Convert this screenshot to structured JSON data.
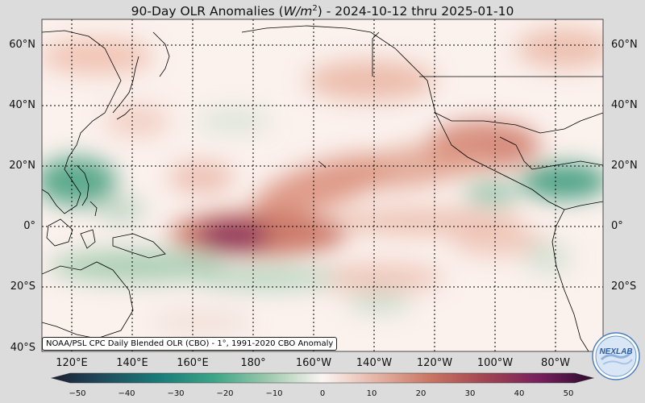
{
  "header": {
    "title_pre": "90-Day OLR Anomalies (",
    "title_unit": "W/m",
    "title_exp": "2",
    "title_post": ") - 2024-10-12 thru 2025-01-10"
  },
  "map": {
    "lat_labels": [
      "60°N",
      "40°N",
      "20°N",
      "0°",
      "20°S",
      "40°S"
    ],
    "lon_labels": [
      "120°E",
      "140°E",
      "160°E",
      "180°",
      "160°W",
      "140°W",
      "120°W",
      "100°W",
      "80°W"
    ],
    "attribution": "NOAA/PSL CPC Daily Blended OLR (CBO) - 1°, 1991-2020 CBO Anomaly",
    "colors": {
      "ocean_neutral": "#fbf1ed",
      "negative": "#2b8f72",
      "positive": "#b34a3a",
      "strong_positive": "#7a1f5c",
      "land_outline": "#000000",
      "grid": "#000000"
    }
  },
  "colorbar": {
    "min": -50,
    "max": 50,
    "tick_labels": [
      "−50",
      "−40",
      "−30",
      "−20",
      "−10",
      "0",
      "10",
      "20",
      "30",
      "40",
      "50"
    ],
    "stops": [
      "#1c1e33",
      "#1f4e5f",
      "#197c7a",
      "#3da587",
      "#9ec9ad",
      "#fbf5f3",
      "#e4b4a4",
      "#c97563",
      "#a34452",
      "#77205e",
      "#2c0a30"
    ]
  },
  "logo": {
    "text": "NEXLAB"
  }
}
